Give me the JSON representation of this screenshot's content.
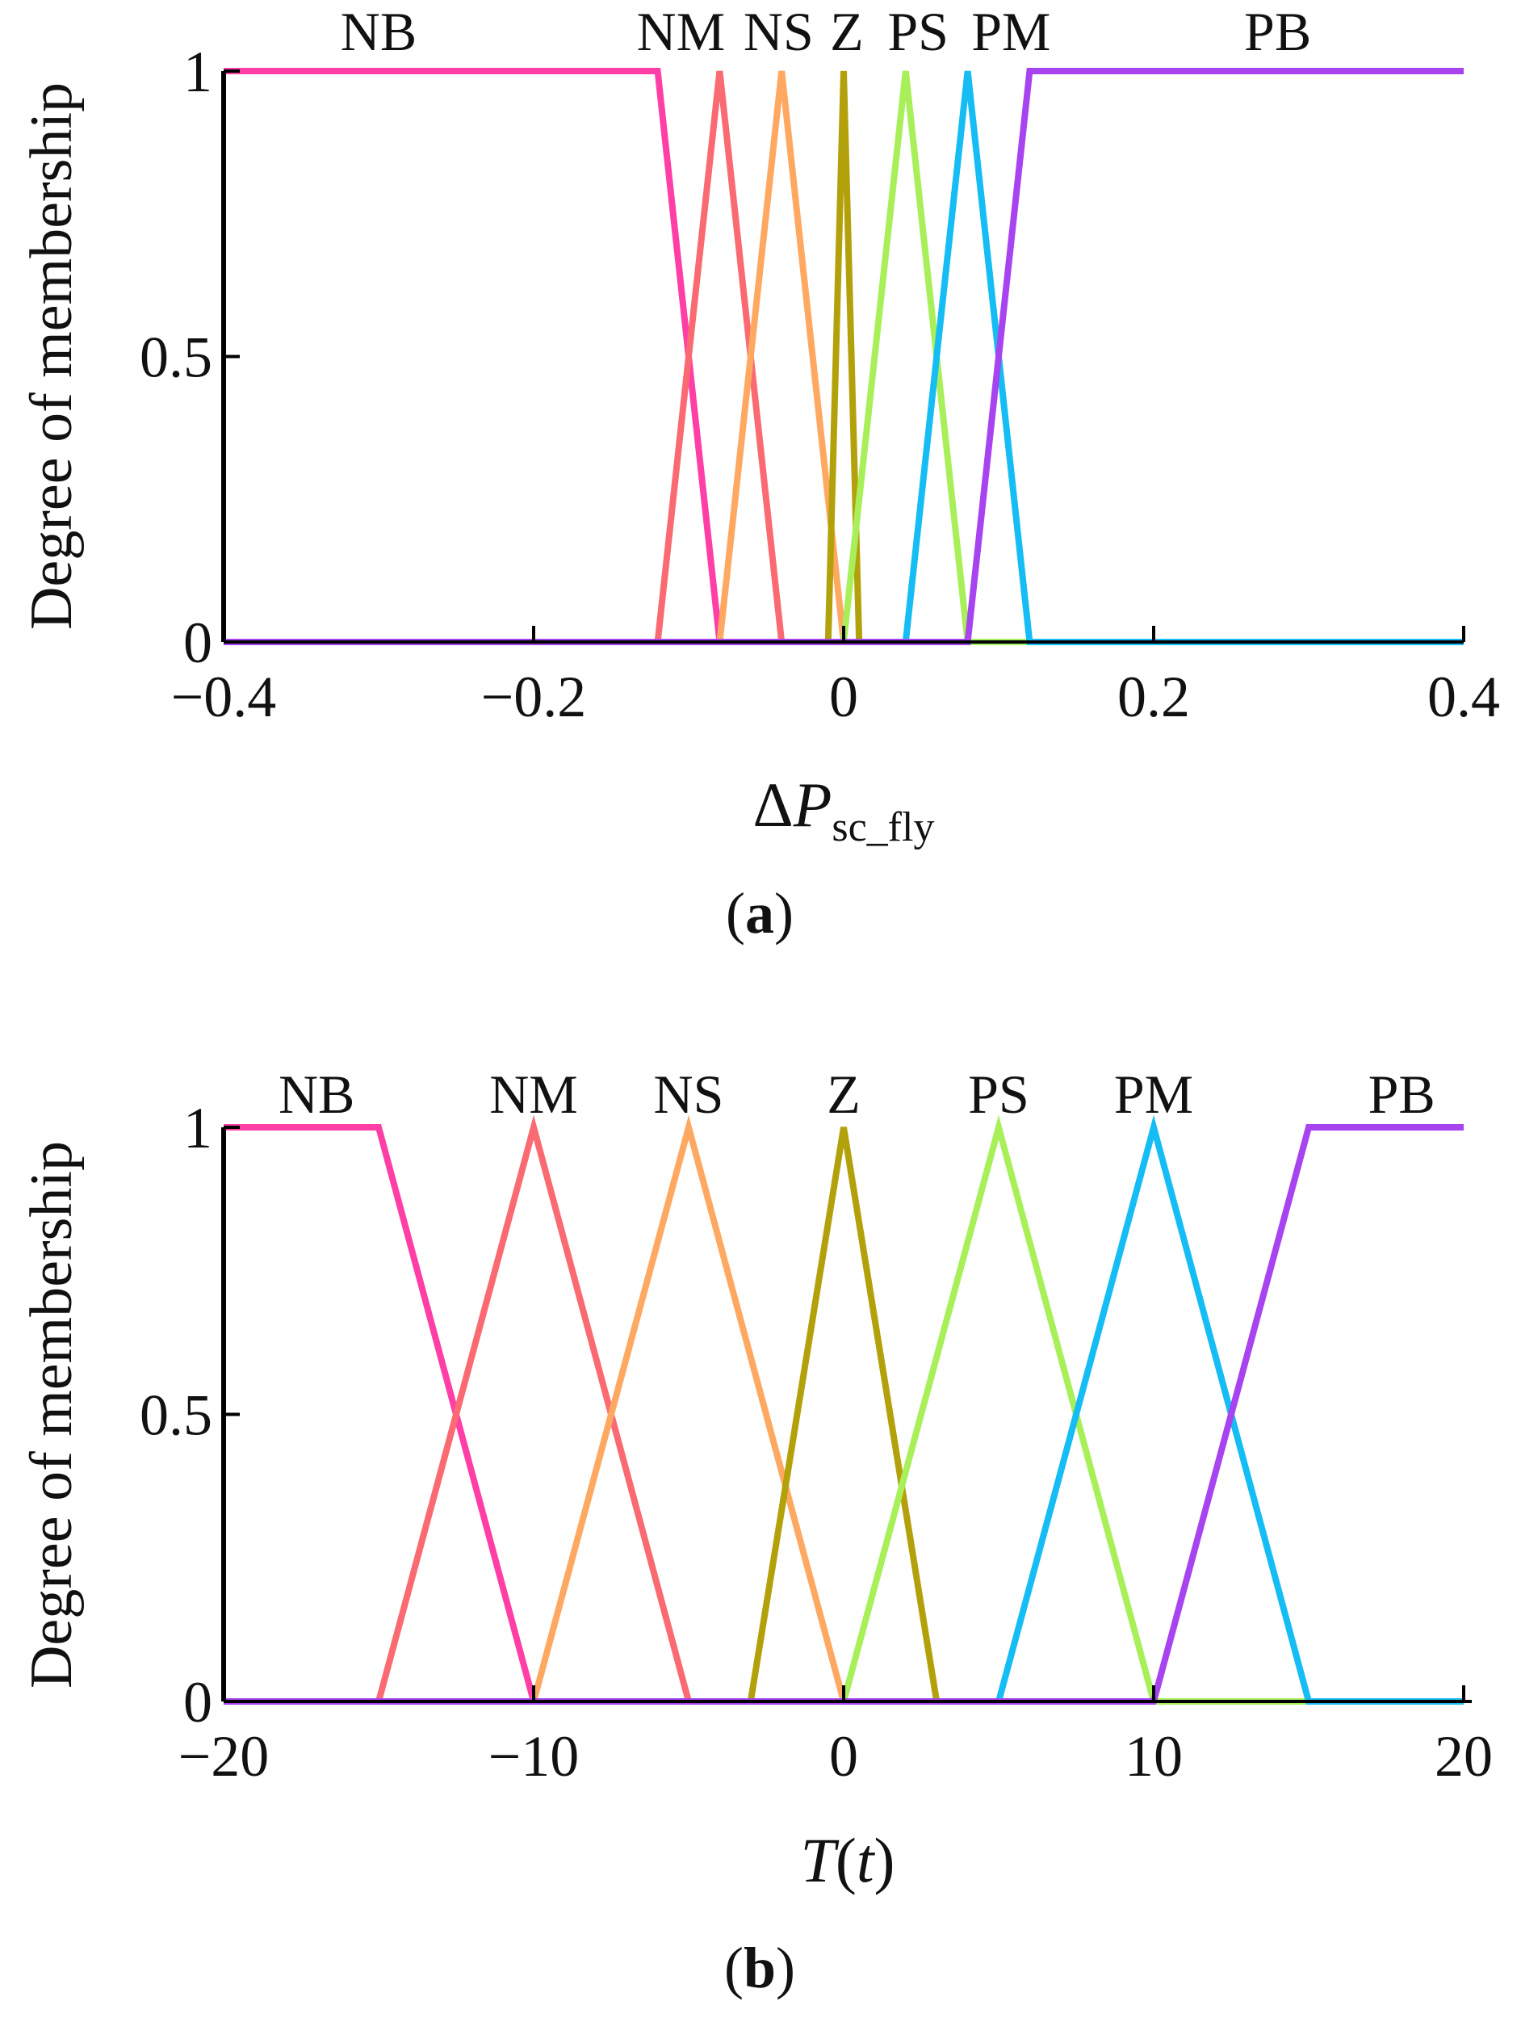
{
  "chart_data": [
    {
      "type": "line",
      "panel_label": "a",
      "title": "",
      "xlabel": "ΔP",
      "xlabel_prefix": "Δ",
      "xlabel_main": "P",
      "xlabel_sub": "sc_fly",
      "ylabel": "Degree of membership",
      "xlim": [
        -0.4,
        0.4
      ],
      "ylim": [
        0,
        1
      ],
      "xticks": [
        -0.4,
        -0.2,
        0,
        0.2,
        0.4
      ],
      "xtick_labels": [
        "−0.4",
        "−0.2",
        "0",
        "0.2",
        "0.4"
      ],
      "yticks": [
        0,
        0.5,
        1
      ],
      "ytick_labels": [
        "0",
        "0.5",
        "1"
      ],
      "grid": false,
      "series": [
        {
          "name": "NB",
          "color": "#ff3fa6",
          "x": [
            -0.4,
            -0.12,
            -0.08,
            0.4
          ],
          "y": [
            1,
            1,
            0,
            0
          ]
        },
        {
          "name": "NM",
          "color": "#fa6a72",
          "x": [
            -0.4,
            -0.12,
            -0.08,
            -0.04,
            0.4
          ],
          "y": [
            0,
            0,
            1,
            0,
            0
          ]
        },
        {
          "name": "NS",
          "color": "#ffa862",
          "x": [
            -0.4,
            -0.08,
            -0.04,
            0,
            0.4
          ],
          "y": [
            0,
            0,
            1,
            0,
            0
          ]
        },
        {
          "name": "Z",
          "color": "#b3a10c",
          "x": [
            -0.4,
            -0.01,
            0,
            0.01,
            0.4
          ],
          "y": [
            0,
            0,
            1,
            0,
            0
          ]
        },
        {
          "name": "PS",
          "color": "#a8ef5a",
          "x": [
            -0.4,
            0,
            0.04,
            0.08,
            0.4
          ],
          "y": [
            0,
            0,
            1,
            0,
            0
          ]
        },
        {
          "name": "PM",
          "color": "#16bdf4",
          "x": [
            -0.4,
            0.04,
            0.08,
            0.12,
            0.4
          ],
          "y": [
            0,
            0,
            1,
            0,
            0
          ]
        },
        {
          "name": "PB",
          "color": "#a744f0",
          "x": [
            -0.4,
            0.08,
            0.12,
            0.4
          ],
          "y": [
            0,
            0,
            1,
            1
          ]
        }
      ],
      "mf_labels": [
        {
          "text": "NB",
          "x": -0.3
        },
        {
          "text": "NM",
          "x": -0.105
        },
        {
          "text": "NS",
          "x": -0.042
        },
        {
          "text": "Z",
          "x": 0.002
        },
        {
          "text": "PS",
          "x": 0.048
        },
        {
          "text": "PM",
          "x": 0.108
        },
        {
          "text": "PB",
          "x": 0.28
        }
      ]
    },
    {
      "type": "line",
      "panel_label": "b",
      "title": "",
      "xlabel": "T(t)",
      "xlabel_main": "T",
      "xlabel_paren_open": "(",
      "xlabel_arg": "t",
      "xlabel_paren_close": ")",
      "ylabel": "Degree of membership",
      "xlim": [
        -20,
        20
      ],
      "ylim": [
        0,
        1
      ],
      "xticks": [
        -20,
        -10,
        0,
        10,
        20
      ],
      "xtick_labels": [
        "−20",
        "−10",
        "0",
        "10",
        "20"
      ],
      "yticks": [
        0,
        0.5,
        1
      ],
      "ytick_labels": [
        "0",
        "0.5",
        "1"
      ],
      "grid": false,
      "series": [
        {
          "name": "NB",
          "color": "#ff3fa6",
          "x": [
            -20,
            -15,
            -10,
            20
          ],
          "y": [
            1,
            1,
            0,
            0
          ]
        },
        {
          "name": "NM",
          "color": "#fa6a72",
          "x": [
            -20,
            -15,
            -10,
            -5,
            20
          ],
          "y": [
            0,
            0,
            1,
            0,
            0
          ]
        },
        {
          "name": "NS",
          "color": "#ffa862",
          "x": [
            -20,
            -10,
            -5,
            0,
            20
          ],
          "y": [
            0,
            0,
            1,
            0,
            0
          ]
        },
        {
          "name": "Z",
          "color": "#b3a10c",
          "x": [
            -20,
            -3,
            0,
            3,
            20
          ],
          "y": [
            0,
            0,
            1,
            0,
            0
          ]
        },
        {
          "name": "PS",
          "color": "#a8ef5a",
          "x": [
            -20,
            0,
            5,
            10,
            20
          ],
          "y": [
            0,
            0,
            1,
            0,
            0
          ]
        },
        {
          "name": "PM",
          "color": "#16bdf4",
          "x": [
            -20,
            5,
            10,
            15,
            20
          ],
          "y": [
            0,
            0,
            1,
            0,
            0
          ]
        },
        {
          "name": "PB",
          "color": "#a744f0",
          "x": [
            -20,
            10,
            15,
            20
          ],
          "y": [
            0,
            0,
            1,
            1
          ]
        }
      ],
      "mf_labels": [
        {
          "text": "NB",
          "x": -17
        },
        {
          "text": "NM",
          "x": -10
        },
        {
          "text": "NS",
          "x": -5
        },
        {
          "text": "Z",
          "x": 0
        },
        {
          "text": "PS",
          "x": 5
        },
        {
          "text": "PM",
          "x": 10
        },
        {
          "text": "PB",
          "x": 18
        }
      ]
    }
  ]
}
